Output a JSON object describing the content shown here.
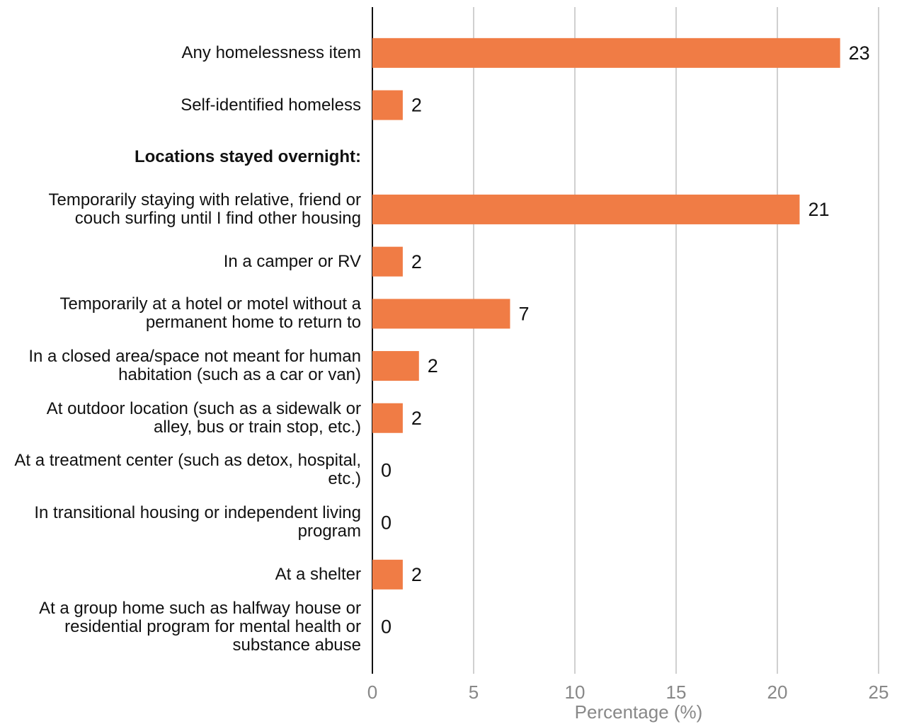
{
  "chart_data": {
    "type": "bar",
    "orientation": "horizontal",
    "categories": [
      "Any homelessness item",
      "Self-identified homeless",
      "Locations stayed overnight:",
      "Temporarily staying with relative, friend or couch surfing until I find other housing",
      "In a camper or RV",
      "Temporarily at a hotel or motel without a permanent home to return to",
      "In a closed area/space not meant for human habitation (such as a car or van)",
      "At outdoor location (such as a sidewalk or alley, bus or train stop, etc.)",
      "At a treatment center (such as detox, hospital, etc.)",
      "In transitional housing or independent living program",
      "At a shelter",
      "At a group home such as halfway house or residential program for mental health or substance abuse"
    ],
    "values": [
      23.1,
      1.5,
      null,
      21.1,
      1.5,
      6.8,
      2.3,
      1.5,
      0,
      0,
      1.5,
      0
    ],
    "value_labels": [
      "23",
      "2",
      null,
      "21",
      "2",
      "7",
      "2",
      "2",
      "0",
      "0",
      "2",
      "0"
    ],
    "color": "#f07c45",
    "xlabel": "Percentage (%)",
    "xlim": [
      0,
      25
    ],
    "xticks": [
      0,
      5,
      10,
      15,
      20,
      25
    ],
    "grid": true
  }
}
